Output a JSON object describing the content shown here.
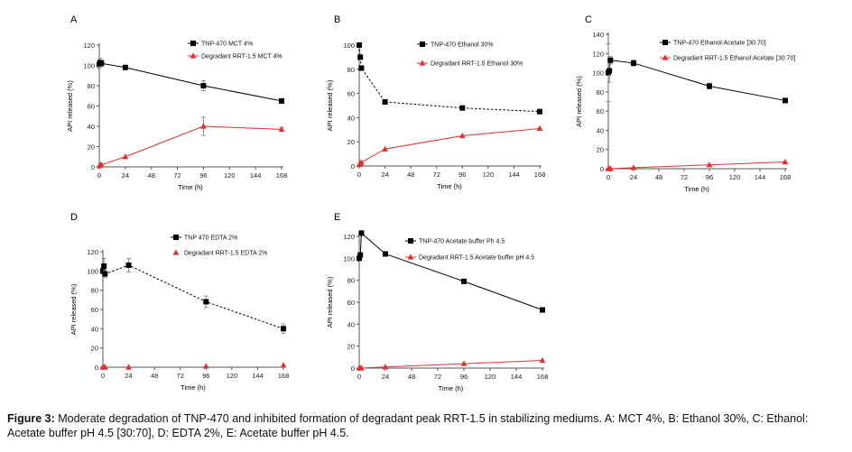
{
  "figure": {
    "caption_label": "Figure 3:",
    "caption_text": " Moderate degradation of TNP-470 and inhibited formation of degradant peak RRT-1.5 in stabilizing mediums. A: MCT 4%, B: Ethanol 30%, C: Ethanol: Acetate buffer pH 4.5 [30:70], D: EDTA 2%, E: Acetate buffer pH 4.5."
  },
  "colors": {
    "main": "#000000",
    "degradant": "#e03030",
    "axis": "#555555"
  },
  "chart_data": [
    {
      "panel": "A",
      "type": "line",
      "xlabel": "Time (h)",
      "ylabel": "API released (%)",
      "xlim": [
        0,
        168
      ],
      "ylim": [
        0,
        120
      ],
      "xticks": [
        0,
        24,
        48,
        72,
        96,
        120,
        144,
        168
      ],
      "yticks": [
        0,
        20,
        40,
        60,
        80,
        100,
        120
      ],
      "legend_position": "top-right",
      "series": [
        {
          "name": "TNP-470 MCT 4%",
          "marker": "square",
          "dashed": false,
          "x": [
            0,
            1,
            2,
            24,
            96,
            168
          ],
          "y": [
            101,
            103,
            102,
            98,
            80,
            65
          ],
          "err": [
            4,
            4,
            3,
            0,
            5,
            0
          ]
        },
        {
          "name": "Degradant RRT-1.5 MCT 4%",
          "marker": "triangle",
          "dashed": false,
          "x": [
            0,
            1,
            2,
            24,
            96,
            168
          ],
          "y": [
            1,
            2,
            2,
            10,
            40,
            37
          ],
          "err": [
            0,
            0,
            0,
            0,
            9,
            2
          ]
        }
      ]
    },
    {
      "panel": "B",
      "type": "line",
      "xlabel": "Time (h)",
      "ylabel": "API released (%)",
      "xlim": [
        0,
        168
      ],
      "ylim": [
        0,
        100
      ],
      "xticks": [
        0,
        24,
        48,
        72,
        96,
        120,
        144,
        168
      ],
      "yticks": [
        0,
        20,
        40,
        60,
        80,
        100
      ],
      "legend_position": "top-right",
      "series": [
        {
          "name": "TNP-470 Ethanol 30%",
          "marker": "square",
          "dashed": true,
          "x": [
            0,
            1,
            2,
            24,
            96,
            168
          ],
          "y": [
            100,
            90,
            81,
            53,
            48,
            45
          ],
          "err": []
        },
        {
          "name": "Degradant RRT-1.5 Ethanol 30%",
          "marker": "triangle",
          "dashed": false,
          "x": [
            0,
            1,
            2,
            24,
            96,
            168
          ],
          "y": [
            1,
            2,
            3,
            14,
            25,
            31
          ],
          "err": []
        }
      ]
    },
    {
      "panel": "C",
      "type": "line",
      "xlabel": "Time (h)",
      "ylabel": "API released (%)",
      "xlim": [
        0,
        168
      ],
      "ylim": [
        0,
        140
      ],
      "xticks": [
        0,
        24,
        48,
        72,
        96,
        120,
        144,
        168
      ],
      "yticks": [
        0,
        20,
        40,
        60,
        80,
        100,
        120,
        140
      ],
      "legend_position": "top-right",
      "series": [
        {
          "name": "TNP-470 Ethanol:Acetate [30:70]",
          "marker": "square",
          "dashed": false,
          "x": [
            0,
            1,
            2,
            24,
            96,
            168
          ],
          "y": [
            100,
            102,
            113,
            110,
            86,
            71
          ],
          "err": [
            30,
            12,
            4,
            3,
            3,
            2
          ]
        },
        {
          "name": "Degradant RRT-1.5 Ethanol:Acetate [30:70]",
          "marker": "triangle",
          "dashed": false,
          "x": [
            0,
            1,
            2,
            24,
            96,
            168
          ],
          "y": [
            0,
            0,
            0,
            1,
            4,
            7
          ],
          "err": []
        }
      ]
    },
    {
      "panel": "D",
      "type": "line",
      "xlabel": "Time (h)",
      "ylabel": "API released (%)",
      "xlim": [
        0,
        168
      ],
      "ylim": [
        0,
        120
      ],
      "xticks": [
        0,
        24,
        48,
        72,
        96,
        120,
        144,
        168
      ],
      "yticks": [
        0,
        20,
        40,
        60,
        80,
        100,
        120
      ],
      "legend_position": "top-right",
      "series": [
        {
          "name": "TNP 470 EDTA 2%",
          "marker": "square",
          "dashed": true,
          "x": [
            0,
            1,
            2,
            24,
            96,
            168
          ],
          "y": [
            100,
            105,
            97,
            106,
            68,
            40
          ],
          "err": [
            3,
            8,
            4,
            7,
            6,
            5
          ]
        },
        {
          "name": "Degradant RRT-1.5 EDTA 2%",
          "marker": "triangle",
          "dashed": false,
          "line": false,
          "x": [
            0,
            1,
            2,
            24,
            96,
            168
          ],
          "y": [
            0,
            0,
            0,
            0,
            1,
            2
          ],
          "err": []
        }
      ]
    },
    {
      "panel": "E",
      "type": "line",
      "xlabel": "Time (h)",
      "ylabel": "API released (%)",
      "xlim": [
        0,
        168
      ],
      "ylim": [
        0,
        120
      ],
      "xticks": [
        0,
        24,
        48,
        72,
        96,
        120,
        144,
        168
      ],
      "yticks": [
        0,
        20,
        40,
        60,
        80,
        100,
        120
      ],
      "legend_position": "top-right",
      "series": [
        {
          "name": "TNP-470 Acetate buffer Ph 4.5",
          "marker": "square",
          "dashed": false,
          "x": [
            0,
            1,
            2,
            24,
            96,
            168
          ],
          "y": [
            100,
            103,
            123,
            104,
            79,
            53
          ],
          "err": []
        },
        {
          "name": "Degradant RRT-1.5 Acetate buffer pH 4.5",
          "marker": "triangle",
          "dashed": false,
          "x": [
            0,
            1,
            2,
            24,
            96,
            168
          ],
          "y": [
            0,
            0,
            0,
            1,
            4,
            7
          ],
          "err": []
        }
      ]
    }
  ]
}
